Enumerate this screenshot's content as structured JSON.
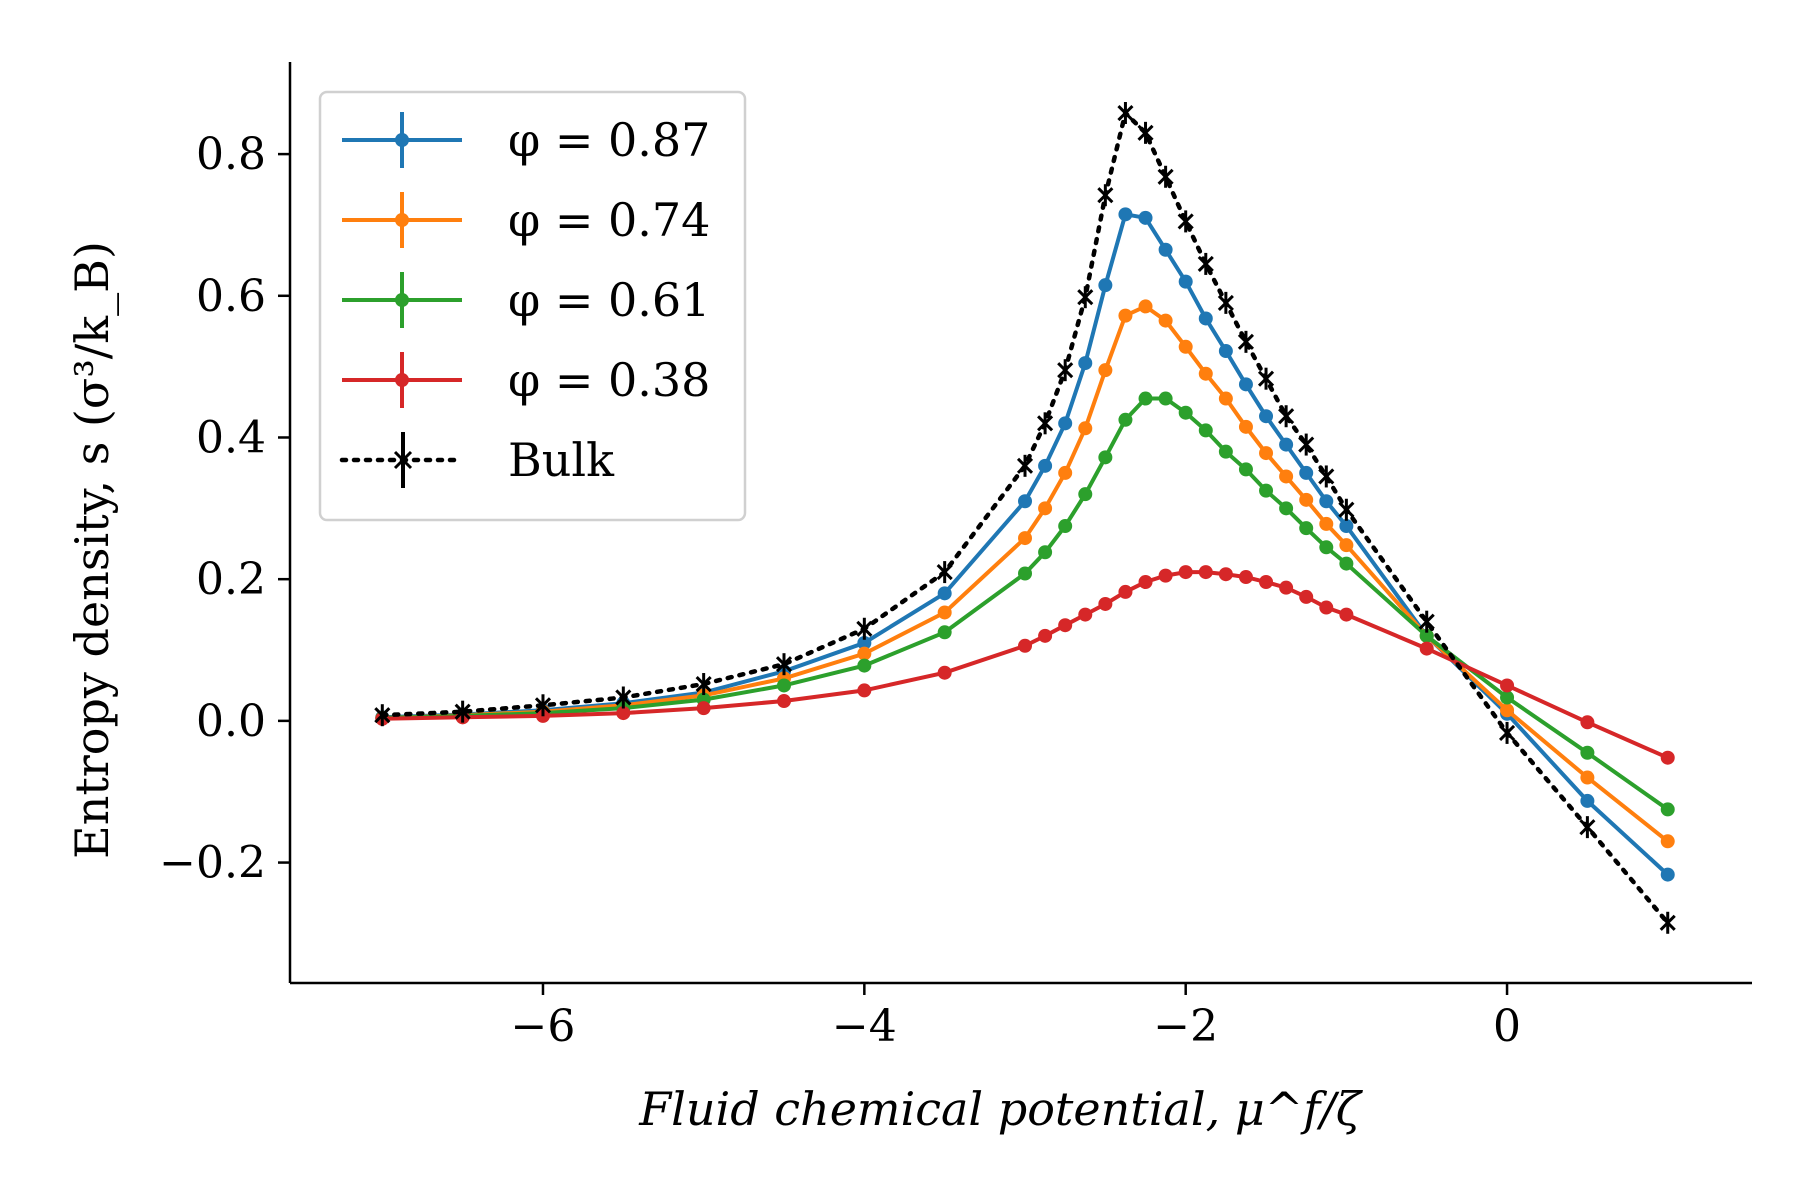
{
  "chart_data": {
    "type": "line",
    "title": "",
    "xlabel": "Fluid chemical potential, μ^f/ζ",
    "ylabel": "Entropy density, s (σ³/k_B)",
    "xlim": [
      -7.45,
      1.4
    ],
    "ylim": [
      -0.37,
      0.93
    ],
    "xticks": [
      -6,
      -4,
      -2,
      0
    ],
    "xtick_labels": [
      "−6",
      "−4",
      "−2",
      "0"
    ],
    "yticks": [
      -0.2,
      0.0,
      0.2,
      0.4,
      0.6,
      0.8
    ],
    "ytick_labels": [
      "−0.2",
      "0.0",
      "0.2",
      "0.4",
      "0.6",
      "0.8"
    ],
    "grid": false,
    "legend_position": "upper-left",
    "series": [
      {
        "name": "φ = 0.87",
        "color": "#1f77b4",
        "style": "solid-dot",
        "x": [
          -7,
          -6.5,
          -6,
          -5.5,
          -5,
          -4.5,
          -4,
          -3.5,
          -3,
          -2.875,
          -2.75,
          -2.625,
          -2.5,
          -2.375,
          -2.25,
          -2.125,
          -2,
          -1.875,
          -1.75,
          -1.625,
          -1.5,
          -1.375,
          -1.25,
          -1.125,
          -1,
          -0.5,
          0,
          0.5,
          1
        ],
        "y": [
          0.005,
          0.009,
          0.015,
          0.025,
          0.04,
          0.07,
          0.11,
          0.18,
          0.31,
          0.36,
          0.42,
          0.505,
          0.615,
          0.715,
          0.71,
          0.665,
          0.62,
          0.568,
          0.522,
          0.475,
          0.43,
          0.39,
          0.35,
          0.31,
          0.275,
          0.12,
          0.01,
          -0.113,
          -0.217
        ]
      },
      {
        "name": "φ = 0.74",
        "color": "#ff7f0e",
        "style": "solid-dot",
        "x": [
          -7,
          -6.5,
          -6,
          -5.5,
          -5,
          -4.5,
          -4,
          -3.5,
          -3,
          -2.875,
          -2.75,
          -2.625,
          -2.5,
          -2.375,
          -2.25,
          -2.125,
          -2,
          -1.875,
          -1.75,
          -1.625,
          -1.5,
          -1.375,
          -1.25,
          -1.125,
          -1,
          -0.5,
          0,
          0.5,
          1
        ],
        "y": [
          0.004,
          0.008,
          0.013,
          0.022,
          0.036,
          0.06,
          0.095,
          0.153,
          0.258,
          0.3,
          0.35,
          0.413,
          0.495,
          0.572,
          0.585,
          0.565,
          0.528,
          0.49,
          0.455,
          0.415,
          0.378,
          0.345,
          0.312,
          0.278,
          0.248,
          0.12,
          0.015,
          -0.08,
          -0.17
        ]
      },
      {
        "name": "φ = 0.61",
        "color": "#2ca02c",
        "style": "solid-dot",
        "x": [
          -7,
          -6.5,
          -6,
          -5.5,
          -5,
          -4.5,
          -4,
          -3.5,
          -3,
          -2.875,
          -2.75,
          -2.625,
          -2.5,
          -2.375,
          -2.25,
          -2.125,
          -2,
          -1.875,
          -1.75,
          -1.625,
          -1.5,
          -1.375,
          -1.25,
          -1.125,
          -1,
          -0.5,
          0,
          0.5,
          1
        ],
        "y": [
          0.004,
          0.007,
          0.011,
          0.018,
          0.03,
          0.05,
          0.078,
          0.125,
          0.208,
          0.238,
          0.275,
          0.32,
          0.372,
          0.425,
          0.455,
          0.455,
          0.435,
          0.41,
          0.38,
          0.355,
          0.325,
          0.3,
          0.272,
          0.245,
          0.222,
          0.12,
          0.033,
          -0.045,
          -0.125
        ]
      },
      {
        "name": "φ = 0.38",
        "color": "#d62728",
        "style": "solid-dot",
        "x": [
          -7,
          -6.5,
          -6,
          -5.5,
          -5,
          -4.5,
          -4,
          -3.5,
          -3,
          -2.875,
          -2.75,
          -2.625,
          -2.5,
          -2.375,
          -2.25,
          -2.125,
          -2,
          -1.875,
          -1.75,
          -1.625,
          -1.5,
          -1.375,
          -1.25,
          -1.125,
          -1,
          -0.5,
          0,
          0.5,
          1
        ],
        "y": [
          0.003,
          0.005,
          0.007,
          0.011,
          0.018,
          0.028,
          0.043,
          0.068,
          0.106,
          0.12,
          0.135,
          0.15,
          0.165,
          0.182,
          0.196,
          0.205,
          0.21,
          0.21,
          0.207,
          0.203,
          0.196,
          0.188,
          0.175,
          0.16,
          0.15,
          0.102,
          0.05,
          -0.002,
          -0.052
        ]
      },
      {
        "name": "Bulk",
        "color": "#000000",
        "style": "dotted-x",
        "x": [
          -7,
          -6.5,
          -6,
          -5.5,
          -5,
          -4.5,
          -4,
          -3.5,
          -3,
          -2.875,
          -2.75,
          -2.625,
          -2.5,
          -2.375,
          -2.25,
          -2.125,
          -2,
          -1.875,
          -1.75,
          -1.625,
          -1.5,
          -1.375,
          -1.25,
          -1.125,
          -1,
          -0.5,
          0,
          0.5,
          1
        ],
        "y": [
          0.008,
          0.013,
          0.022,
          0.033,
          0.052,
          0.08,
          0.13,
          0.21,
          0.36,
          0.42,
          0.495,
          0.598,
          0.742,
          0.858,
          0.83,
          0.768,
          0.705,
          0.645,
          0.59,
          0.535,
          0.483,
          0.43,
          0.39,
          0.345,
          0.298,
          0.14,
          -0.017,
          -0.15,
          -0.285
        ]
      }
    ]
  }
}
